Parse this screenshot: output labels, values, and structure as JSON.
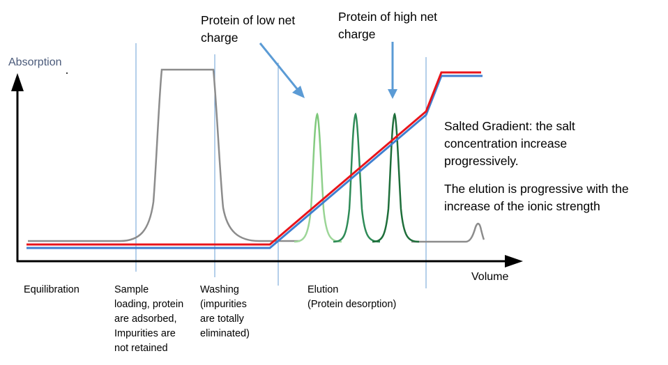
{
  "axes": {
    "y_label": "Absorption",
    "x_label": "Volume"
  },
  "phases": [
    {
      "key": "equilibration",
      "label": "Equilibration"
    },
    {
      "key": "loading",
      "label": "Sample\nloading, protein\nare adsorbed,\nImpurities are\nnot retained"
    },
    {
      "key": "washing",
      "label": "Washing\n(impurities\nare totally\neliminated)"
    },
    {
      "key": "elution",
      "label": "Elution\n(Protein desorption)"
    }
  ],
  "annotations": {
    "low_charge": "Protein of low net\ncharge",
    "high_charge": "Protein of high net\ncharge",
    "gradient": "Salted Gradient: the salt\nconcentration increase\nprogressively.",
    "elution_note": "The elution is progressive with the\nincrease of the ionic strength"
  },
  "colors": {
    "axis": "#000000",
    "axis_label": "#4a5a7a",
    "sample_trace": "#8c8c8c",
    "gradient_red": "#e8141b",
    "gradient_blue": "#3f7fd0",
    "divider": "#6a9fd6",
    "arrow": "#5b9bd5",
    "peak_light": "#7dc87a",
    "peak_mid": "#2e8b57",
    "peak_dark": "#1e6e3a"
  }
}
